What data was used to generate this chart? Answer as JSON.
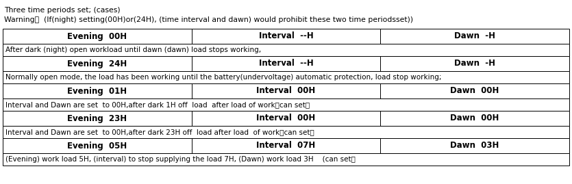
{
  "title_line1": "Three time periods set; (cases)",
  "title_line2": "Warning：  (If(night) setting(00H)or(24H), (time interval and dawn) would prohibit these two time periodsset))",
  "rows": [
    {
      "type": "header",
      "cols": [
        "Evening  00H",
        "Interval  --H",
        "Dawn  -H"
      ]
    },
    {
      "type": "description",
      "text": "After dark (night) open workload until dawn (dawn) load stops working,"
    },
    {
      "type": "header",
      "cols": [
        "Evening  24H",
        "Interval  --H",
        "Dawn  -H"
      ]
    },
    {
      "type": "description",
      "text": "Normally open mode, the load has been working until the battery(undervoltage) automatic protection, load stop working;"
    },
    {
      "type": "header",
      "cols": [
        "Evening  01H",
        "Interval  00H",
        "Dawn  00H"
      ]
    },
    {
      "type": "description",
      "text": "Interval and Dawn are set  to 00H,after dark 1H off  load  after load of work（can set）"
    },
    {
      "type": "header",
      "cols": [
        "Evening  23H",
        "Interval  00H",
        "Dawn  00H"
      ]
    },
    {
      "type": "description",
      "text": "Interval and Dawn are set  to 00H,after dark 23H off  load after load  of work（can set）"
    },
    {
      "type": "header",
      "cols": [
        "Evening  05H",
        "Interval  07H",
        "Dawn  03H"
      ]
    },
    {
      "type": "description",
      "text": "(Evening) work load 5H, (interval) to stop supplying the load 7H, (Dawn) work load 3H    (can set）"
    }
  ],
  "bg_color": "#ffffff",
  "border_color": "#000000",
  "text_color": "#000000",
  "header_fontsize": 8.5,
  "desc_fontsize": 7.5,
  "title_fontsize": 7.8
}
